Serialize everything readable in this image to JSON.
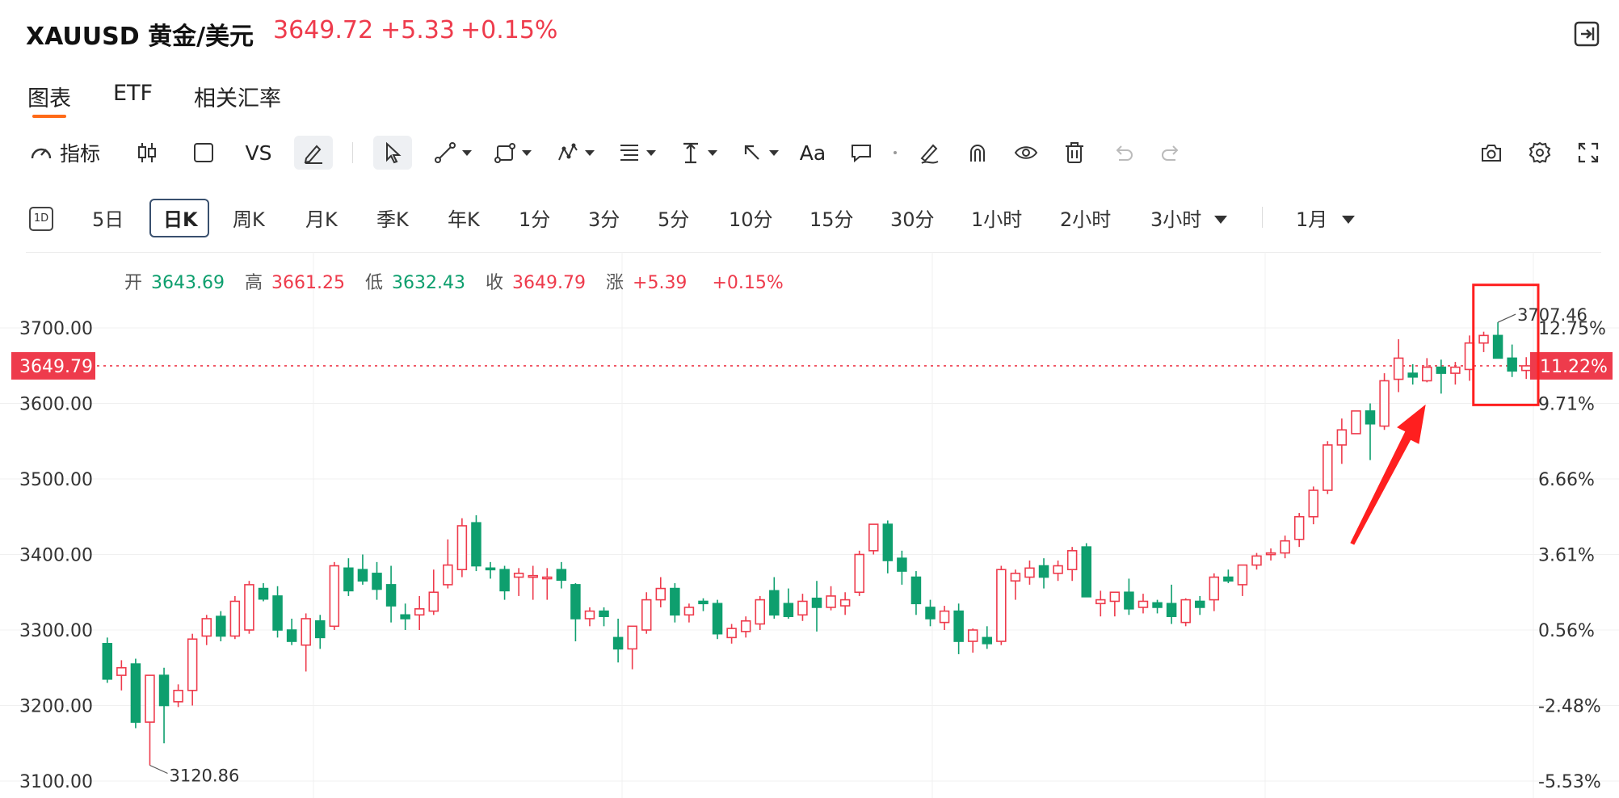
{
  "header": {
    "symbol": "XAUUSD 黄金/美元",
    "price": "3649.72",
    "change": "+5.33",
    "change_pct": "+0.15%"
  },
  "tabs": [
    {
      "label": "图表",
      "active": true
    },
    {
      "label": "ETF",
      "active": false
    },
    {
      "label": "相关汇率",
      "active": false
    }
  ],
  "toolbar": {
    "indicator_label": "指标",
    "vs_label": "VS",
    "text_label": "Aa"
  },
  "timeframes": {
    "icon_label": "1D",
    "items": [
      "5日",
      "日K",
      "周K",
      "月K",
      "季K",
      "年K",
      "1分",
      "3分",
      "5分",
      "10分",
      "15分",
      "30分",
      "1小时",
      "2小时",
      "3小时"
    ],
    "selected": "日K",
    "range_label": "1月"
  },
  "ohlc": {
    "open_label": "开",
    "open": "3643.69",
    "high_label": "高",
    "high": "3661.25",
    "low_label": "低",
    "low": "3632.43",
    "close_label": "收",
    "close": "3649.79",
    "change_label": "涨",
    "change": "+5.39",
    "change_pct": "+0.15%"
  },
  "colors": {
    "up": "#ee3b4c",
    "down": "#0e9f6e",
    "accent": "#ff6a17",
    "annotation": "#ff1f1f"
  },
  "chart_data": {
    "type": "candlestick",
    "title": "",
    "ylim": [
      3090,
      3745
    ],
    "y_ticks": [
      "3700.00",
      "3600.00",
      "3500.00",
      "3400.00",
      "3300.00",
      "3200.00",
      "3100.00"
    ],
    "y_tick_values": [
      3700,
      3600,
      3500,
      3400,
      3300,
      3200,
      3100
    ],
    "pct_ticks": [
      "12.75%",
      "9.71%",
      "6.66%",
      "3.61%",
      "0.56%",
      "-2.48%",
      "-5.53%"
    ],
    "pct_tick_values": [
      3700,
      3600,
      3500,
      3400,
      3300,
      3200,
      3100
    ],
    "last_price_label": "3649.79",
    "last_price_pct_label": "11.22%",
    "last_price": 3649.79,
    "max_label": "3707.46",
    "max_value": 3707.46,
    "min_label": "3120.86",
    "min_value": 3120.86,
    "grid": true,
    "candles": [
      [
        3282,
        3290,
        3230,
        3235
      ],
      [
        3240,
        3260,
        3220,
        3250
      ],
      [
        3255,
        3262,
        3170,
        3178
      ],
      [
        3178,
        3240,
        3120.86,
        3240
      ],
      [
        3240,
        3250,
        3150,
        3200
      ],
      [
        3205,
        3228,
        3198,
        3220
      ],
      [
        3220,
        3295,
        3200,
        3288
      ],
      [
        3292,
        3320,
        3280,
        3315
      ],
      [
        3318,
        3325,
        3285,
        3292
      ],
      [
        3292,
        3345,
        3288,
        3338
      ],
      [
        3300,
        3365,
        3295,
        3360
      ],
      [
        3355,
        3362,
        3338,
        3341
      ],
      [
        3345,
        3358,
        3290,
        3300
      ],
      [
        3300,
        3315,
        3280,
        3285
      ],
      [
        3280,
        3322,
        3245,
        3315
      ],
      [
        3312,
        3320,
        3275,
        3290
      ],
      [
        3305,
        3390,
        3300,
        3385
      ],
      [
        3382,
        3395,
        3345,
        3352
      ],
      [
        3380,
        3400,
        3360,
        3365
      ],
      [
        3375,
        3390,
        3340,
        3354
      ],
      [
        3360,
        3385,
        3310,
        3332
      ],
      [
        3320,
        3335,
        3300,
        3315
      ],
      [
        3320,
        3345,
        3300,
        3328
      ],
      [
        3325,
        3380,
        3320,
        3350
      ],
      [
        3360,
        3420,
        3355,
        3386
      ],
      [
        3380,
        3448,
        3370,
        3438
      ],
      [
        3442,
        3452,
        3378,
        3385
      ],
      [
        3382,
        3390,
        3368,
        3380
      ],
      [
        3380,
        3385,
        3340,
        3352
      ],
      [
        3370,
        3382,
        3345,
        3375
      ],
      [
        3372,
        3385,
        3340,
        3372
      ],
      [
        3368,
        3382,
        3340,
        3370
      ],
      [
        3380,
        3390,
        3355,
        3366
      ],
      [
        3360,
        3362,
        3285,
        3315
      ],
      [
        3315,
        3330,
        3305,
        3325
      ],
      [
        3325,
        3330,
        3305,
        3318
      ],
      [
        3290,
        3315,
        3257,
        3275
      ],
      [
        3275,
        3300,
        3248,
        3305
      ],
      [
        3300,
        3350,
        3295,
        3340
      ],
      [
        3340,
        3370,
        3330,
        3355
      ],
      [
        3355,
        3362,
        3310,
        3320
      ],
      [
        3320,
        3335,
        3310,
        3330
      ],
      [
        3338,
        3342,
        3325,
        3335
      ],
      [
        3335,
        3340,
        3288,
        3295
      ],
      [
        3290,
        3308,
        3282,
        3302
      ],
      [
        3298,
        3318,
        3290,
        3312
      ],
      [
        3308,
        3345,
        3300,
        3340
      ],
      [
        3352,
        3370,
        3315,
        3320
      ],
      [
        3335,
        3355,
        3315,
        3318
      ],
      [
        3320,
        3348,
        3312,
        3338
      ],
      [
        3342,
        3365,
        3298,
        3330
      ],
      [
        3330,
        3358,
        3326,
        3345
      ],
      [
        3332,
        3350,
        3320,
        3340
      ],
      [
        3350,
        3405,
        3345,
        3400
      ],
      [
        3405,
        3440,
        3400,
        3440
      ],
      [
        3440,
        3445,
        3375,
        3392
      ],
      [
        3395,
        3405,
        3360,
        3378
      ],
      [
        3370,
        3378,
        3320,
        3335
      ],
      [
        3330,
        3340,
        3305,
        3315
      ],
      [
        3310,
        3332,
        3300,
        3325
      ],
      [
        3325,
        3335,
        3268,
        3285
      ],
      [
        3285,
        3302,
        3270,
        3300
      ],
      [
        3290,
        3305,
        3275,
        3282
      ],
      [
        3285,
        3385,
        3280,
        3380
      ],
      [
        3365,
        3380,
        3340,
        3375
      ],
      [
        3370,
        3392,
        3360,
        3382
      ],
      [
        3385,
        3395,
        3355,
        3370
      ],
      [
        3375,
        3392,
        3365,
        3385
      ],
      [
        3380,
        3410,
        3365,
        3405
      ],
      [
        3410,
        3415,
        3345,
        3344
      ],
      [
        3335,
        3352,
        3318,
        3340
      ],
      [
        3338,
        3348,
        3318,
        3350
      ],
      [
        3350,
        3368,
        3320,
        3328
      ],
      [
        3330,
        3348,
        3322,
        3338
      ],
      [
        3336,
        3340,
        3322,
        3330
      ],
      [
        3335,
        3360,
        3308,
        3318
      ],
      [
        3310,
        3342,
        3305,
        3340
      ],
      [
        3338,
        3345,
        3320,
        3330
      ],
      [
        3340,
        3375,
        3325,
        3370
      ],
      [
        3370,
        3380,
        3362,
        3365
      ],
      [
        3360,
        3385,
        3345,
        3386
      ],
      [
        3386,
        3402,
        3380,
        3398
      ],
      [
        3400,
        3408,
        3392,
        3402
      ],
      [
        3402,
        3425,
        3395,
        3418
      ],
      [
        3420,
        3455,
        3410,
        3450
      ],
      [
        3450,
        3490,
        3440,
        3485
      ],
      [
        3485,
        3550,
        3480,
        3545
      ],
      [
        3545,
        3580,
        3520,
        3565
      ],
      [
        3560,
        3590,
        3560,
        3590
      ],
      [
        3590,
        3600,
        3525,
        3573
      ],
      [
        3570,
        3640,
        3565,
        3630
      ],
      [
        3632,
        3685,
        3615,
        3660
      ],
      [
        3640,
        3652,
        3625,
        3635
      ],
      [
        3630,
        3660,
        3628,
        3648
      ],
      [
        3648,
        3658,
        3613,
        3640
      ],
      [
        3640,
        3655,
        3625,
        3648
      ],
      [
        3645,
        3690,
        3630,
        3680
      ],
      [
        3680,
        3695,
        3668,
        3690
      ],
      [
        3690,
        3707.46,
        3665,
        3660
      ],
      [
        3660,
        3678,
        3635,
        3643
      ],
      [
        3643.69,
        3661.25,
        3632.43,
        3649.79
      ]
    ]
  }
}
